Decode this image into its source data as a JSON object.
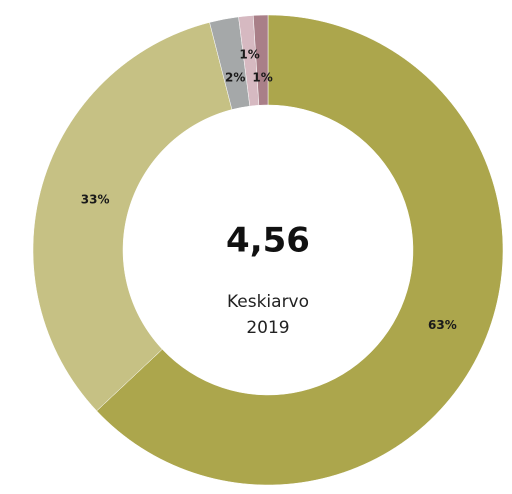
{
  "chart_data": {
    "type": "donut",
    "center_value": "4,56",
    "center_label": [
      "Keskiarvo",
      "2019"
    ],
    "values": [
      63,
      33,
      2,
      1,
      1
    ],
    "value_labels": [
      "63%",
      "33%",
      "2%",
      "1%",
      "1%"
    ],
    "colors": [
      "#aca64c",
      "#c6c184",
      "#a5a8a9",
      "#d6b9c1",
      "#a97f88"
    ]
  }
}
